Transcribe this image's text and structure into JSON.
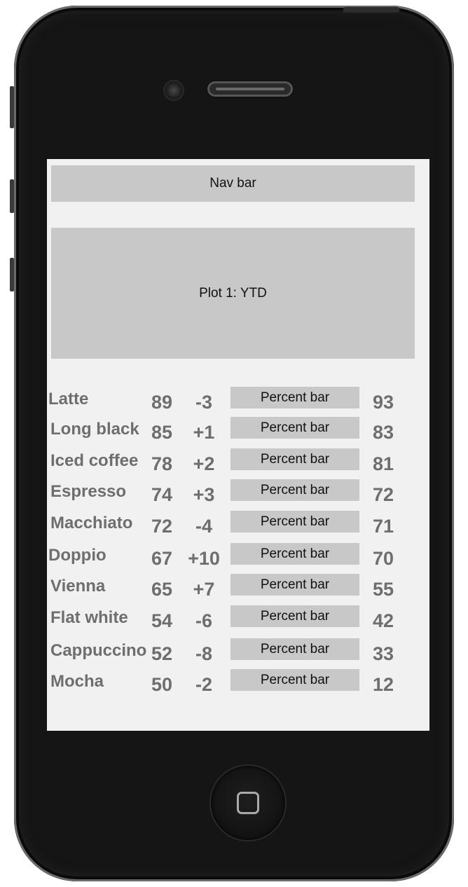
{
  "nav": {
    "label": "Nav bar"
  },
  "plot": {
    "label": "Plot 1: YTD"
  },
  "bar_label": "Percent bar",
  "rows": [
    {
      "name": "Latte",
      "value": "89",
      "change": "-3",
      "percent_label": "Percent bar",
      "percent": "93"
    },
    {
      "name": "Long black",
      "value": "85",
      "change": "+1",
      "percent_label": "Percent bar",
      "percent": "83"
    },
    {
      "name": "Iced coffee",
      "value": "78",
      "change": "+2",
      "percent_label": "Percent bar",
      "percent": "81"
    },
    {
      "name": "Espresso",
      "value": "74",
      "change": "+3",
      "percent_label": "Percent bar",
      "percent": "72"
    },
    {
      "name": "Macchiato",
      "value": "72",
      "change": "-4",
      "percent_label": "Percent bar",
      "percent": "71"
    },
    {
      "name": "Doppio",
      "value": "67",
      "change": "+10",
      "percent_label": "Percent bar",
      "percent": "70"
    },
    {
      "name": "Vienna",
      "value": "65",
      "change": "+7",
      "percent_label": "Percent bar",
      "percent": "55"
    },
    {
      "name": "Flat white",
      "value": "54",
      "change": "-6",
      "percent_label": "Percent bar",
      "percent": "42"
    },
    {
      "name": "Cappuccino",
      "value": "52",
      "change": "-8",
      "percent_label": "Percent bar",
      "percent": "33"
    },
    {
      "name": "Mocha",
      "value": "50",
      "change": "-2",
      "percent_label": "Percent bar",
      "percent": "12"
    }
  ]
}
